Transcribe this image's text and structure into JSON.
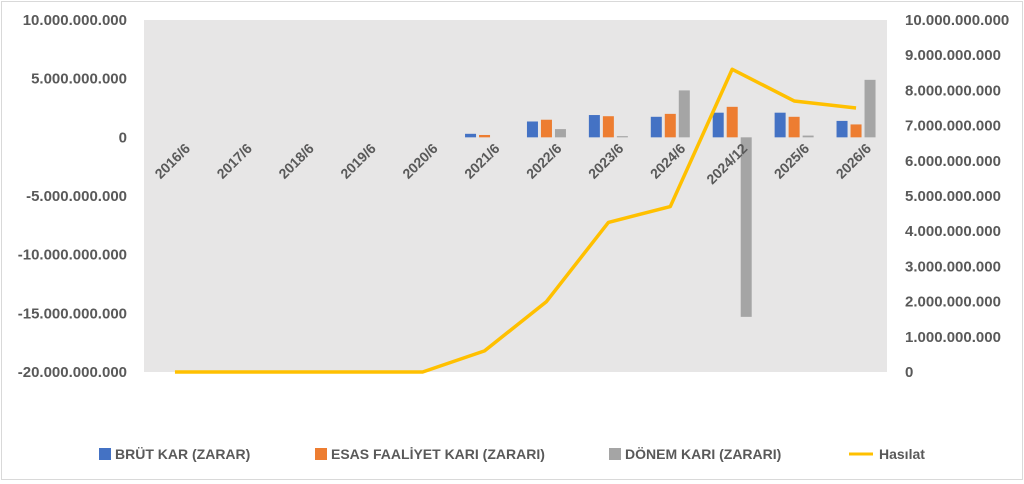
{
  "chart_data": {
    "type": "bar",
    "categories": [
      "2016/6",
      "2017/6",
      "2018/6",
      "2019/6",
      "2020/6",
      "2021/6",
      "2022/6",
      "2023/6",
      "2024/6",
      "2024/12",
      "2025/6",
      "2026/6"
    ],
    "series": [
      {
        "name": "BRÜT KAR (ZARAR)",
        "type": "bar",
        "axis": "left",
        "color": "#4472C4",
        "values": [
          0,
          0,
          0,
          0,
          0,
          300000000,
          1350000000,
          1900000000,
          1750000000,
          2100000000,
          2100000000,
          1400000000
        ]
      },
      {
        "name": "ESAS FAALİYET KARI (ZARARI)",
        "type": "bar",
        "axis": "left",
        "color": "#ED7D31",
        "values": [
          0,
          0,
          0,
          0,
          0,
          200000000,
          1500000000,
          1800000000,
          2000000000,
          2600000000,
          1750000000,
          1100000000
        ]
      },
      {
        "name": "DÖNEM KARI (ZARARI)",
        "type": "bar",
        "axis": "left",
        "color": "#A5A5A5",
        "values": [
          0,
          0,
          0,
          0,
          0,
          0,
          700000000,
          100000000,
          4000000000,
          -15300000000,
          150000000,
          4900000000
        ]
      },
      {
        "name": "Hasılat",
        "type": "line",
        "axis": "right",
        "color": "#FFC000",
        "values": [
          0,
          0,
          0,
          0,
          0,
          600000000,
          2000000000,
          4250000000,
          4700000000,
          8600000000,
          7700000000,
          7500000000
        ]
      }
    ],
    "left_axis": {
      "min": -20000000000,
      "max": 10000000000,
      "step": 5000000000,
      "tick_labels": [
        "10.000.000.000",
        "5.000.000.000",
        "0",
        "-5.000.000.000",
        "-10.000.000.000",
        "-15.000.000.000",
        "-20.000.000.000"
      ]
    },
    "right_axis": {
      "min": 0,
      "max": 10000000000,
      "step": 1000000000,
      "tick_labels": [
        "10.000.000.000",
        "9.000.000.000",
        "8.000.000.000",
        "7.000.000.000",
        "6.000.000.000",
        "5.000.000.000",
        "4.000.000.000",
        "3.000.000.000",
        "2.000.000.000",
        "1.000.000.000",
        "0"
      ]
    },
    "grid": false,
    "legend_position": "bottom",
    "plot_background": "#E7E6E6"
  }
}
